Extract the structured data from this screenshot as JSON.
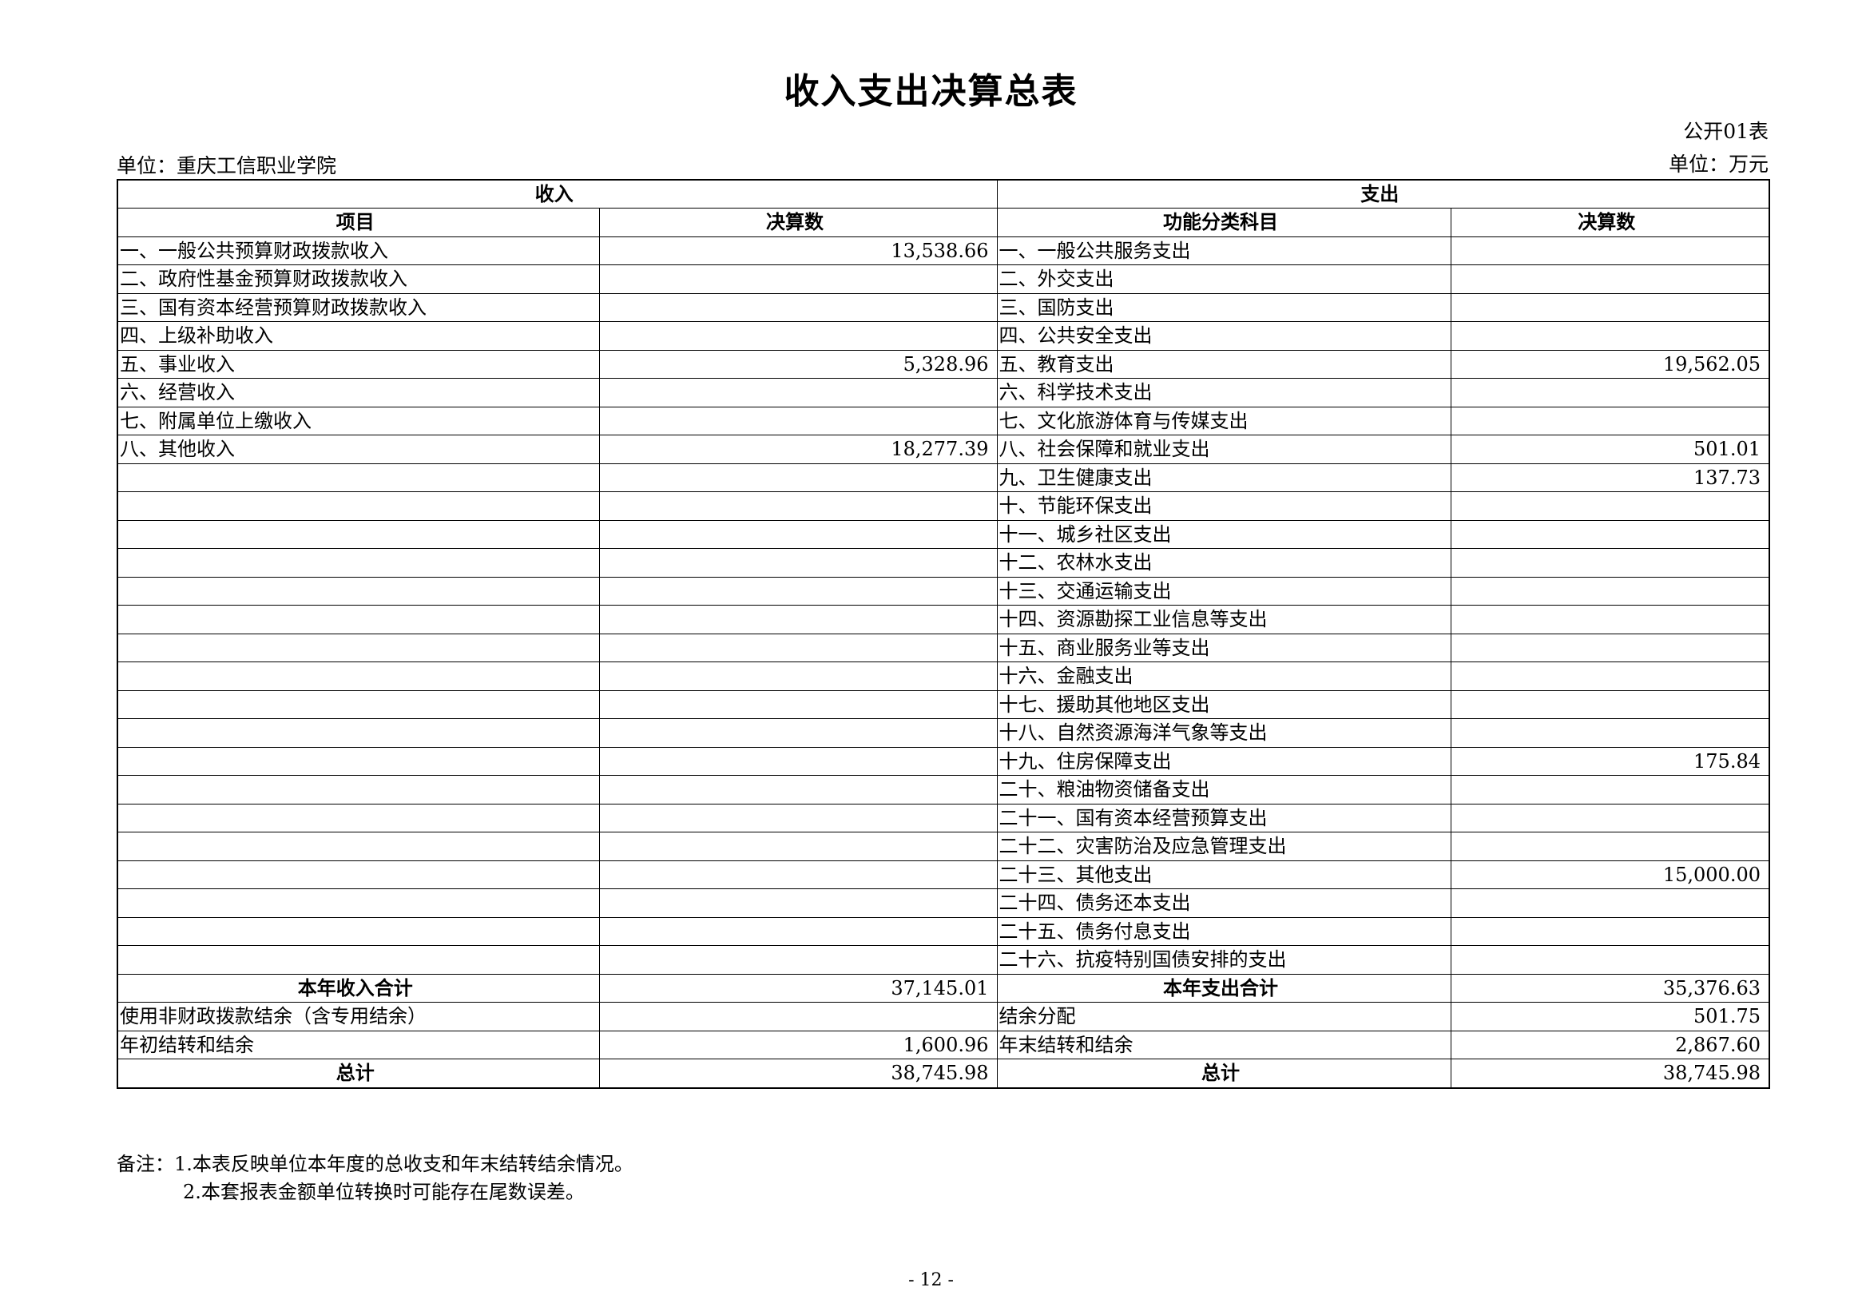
{
  "title": "收入支出决算总表",
  "form_no": "公开01表",
  "unit_org": "单位：重庆工信职业学院",
  "unit_currency": "单位：万元",
  "headers": {
    "income": "收入",
    "expense": "支出",
    "income_item": "项目",
    "income_amount": "决算数",
    "expense_item": "功能分类科目",
    "expense_amount": "决算数"
  },
  "income_rows": [
    {
      "label": "一、一般公共预算财政拨款收入",
      "value": "13,538.66"
    },
    {
      "label": "二、政府性基金预算财政拨款收入",
      "value": ""
    },
    {
      "label": "三、国有资本经营预算财政拨款收入",
      "value": ""
    },
    {
      "label": "四、上级补助收入",
      "value": ""
    },
    {
      "label": "五、事业收入",
      "value": "5,328.96"
    },
    {
      "label": "六、经营收入",
      "value": ""
    },
    {
      "label": "七、附属单位上缴收入",
      "value": ""
    },
    {
      "label": "八、其他收入",
      "value": "18,277.39"
    }
  ],
  "expense_rows": [
    {
      "label": "一、一般公共服务支出",
      "value": ""
    },
    {
      "label": "二、外交支出",
      "value": ""
    },
    {
      "label": "三、国防支出",
      "value": ""
    },
    {
      "label": "四、公共安全支出",
      "value": ""
    },
    {
      "label": "五、教育支出",
      "value": "19,562.05"
    },
    {
      "label": "六、科学技术支出",
      "value": ""
    },
    {
      "label": "七、文化旅游体育与传媒支出",
      "value": ""
    },
    {
      "label": "八、社会保障和就业支出",
      "value": "501.01"
    },
    {
      "label": "九、卫生健康支出",
      "value": "137.73"
    },
    {
      "label": "十、节能环保支出",
      "value": ""
    },
    {
      "label": "十一、城乡社区支出",
      "value": ""
    },
    {
      "label": "十二、农林水支出",
      "value": ""
    },
    {
      "label": "十三、交通运输支出",
      "value": ""
    },
    {
      "label": "十四、资源勘探工业信息等支出",
      "value": ""
    },
    {
      "label": "十五、商业服务业等支出",
      "value": ""
    },
    {
      "label": "十六、金融支出",
      "value": ""
    },
    {
      "label": "十七、援助其他地区支出",
      "value": ""
    },
    {
      "label": "十八、自然资源海洋气象等支出",
      "value": ""
    },
    {
      "label": "十九、住房保障支出",
      "value": "175.84"
    },
    {
      "label": "二十、粮油物资储备支出",
      "value": ""
    },
    {
      "label": "二十一、国有资本经营预算支出",
      "value": ""
    },
    {
      "label": "二十二、灾害防治及应急管理支出",
      "value": ""
    },
    {
      "label": "二十三、其他支出",
      "value": "15,000.00"
    },
    {
      "label": "二十四、债务还本支出",
      "value": ""
    },
    {
      "label": "二十五、债务付息支出",
      "value": ""
    },
    {
      "label": "二十六、抗疫特别国债安排的支出",
      "value": ""
    }
  ],
  "summary_rows": [
    {
      "income_label": "本年收入合计",
      "income_value": "37,145.01",
      "expense_label": "本年支出合计",
      "expense_value": "35,376.63",
      "bold": true
    },
    {
      "income_label": "使用非财政拨款结余（含专用结余）",
      "income_value": "",
      "expense_label": "结余分配",
      "expense_value": "501.75",
      "bold": false
    },
    {
      "income_label": "年初结转和结余",
      "income_value": "1,600.96",
      "expense_label": "年末结转和结余",
      "expense_value": "2,867.60",
      "bold": false
    },
    {
      "income_label": "总计",
      "income_value": "38,745.98",
      "expense_label": "总计",
      "expense_value": "38,745.98",
      "bold": true
    }
  ],
  "notes": [
    "备注：1.本表反映单位本年度的总收支和年末结转结余情况。",
    "2.本套报表金额单位转换时可能存在尾数误差。"
  ],
  "page_number": "- 12 -"
}
